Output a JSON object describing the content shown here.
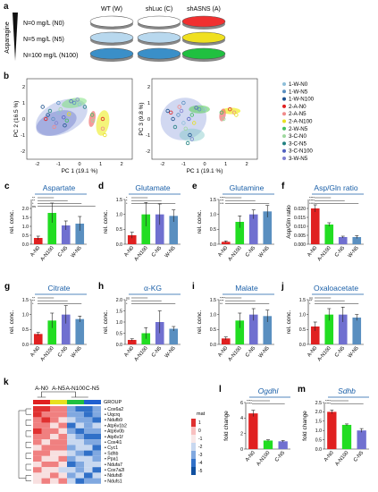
{
  "panels": {
    "a": {
      "label": "a",
      "axis_label": "Asparagine",
      "levels": [
        "N=0 mg/L (N0)",
        "N=5 mg/L (N5)",
        "N=100 mg/L (N100)"
      ],
      "groups": [
        "WT (W)",
        "shLuc (C)",
        "shASNS (A)"
      ]
    },
    "b": {
      "label": "b",
      "left_xlabel": "PC 1 (19.1 %)",
      "left_ylabel": "PC 2 (16.5 %)",
      "right_xlabel": "PC 1 (19.1 %)",
      "right_ylabel": "PC 3 (9.8 %)",
      "ticks_x": [
        "-2",
        "-1",
        "0",
        "1",
        "2"
      ],
      "ticks_y": [
        "2",
        "1",
        "0",
        "-1",
        "-2"
      ],
      "legend": [
        {
          "name": "1-W-N0",
          "color": "#8fbfd9"
        },
        {
          "name": "1-W-N5",
          "color": "#5a8fc0"
        },
        {
          "name": "1-W-N100",
          "color": "#1c4f8c"
        },
        {
          "name": "2-A-N0",
          "color": "#e02020"
        },
        {
          "name": "2-A-N5",
          "color": "#f08a8a"
        },
        {
          "name": "2-A-N100",
          "color": "#e8e020"
        },
        {
          "name": "2-W-N5",
          "color": "#40c060"
        },
        {
          "name": "3-C-N0",
          "color": "#9fd89f"
        },
        {
          "name": "3-C-N5",
          "color": "#208080"
        },
        {
          "name": "3-C-N100",
          "color": "#5060c0"
        },
        {
          "name": "3-W-N5",
          "color": "#8080d0"
        }
      ]
    },
    "k": {
      "label": "k",
      "groups": [
        "A-N0",
        "A-N5",
        "A-N100",
        "C-N5"
      ],
      "group_colors": [
        "#e02020",
        "#e8e020",
        "#20c040",
        "#2060d0"
      ],
      "legend_title": "GROUP",
      "genes": [
        "Cox6a2",
        "Uqcrq",
        "Ndufb9",
        "Atp6v1b2",
        "Atp6v0b",
        "Atp6v1f",
        "Cox4i1",
        "Cyc1",
        "Sdhb",
        "Ppa1",
        "Ndufa7",
        "Cox7a2l",
        "Ndufs8",
        "Ndufs1"
      ],
      "scale_label": "mat",
      "scale_ticks": [
        "1",
        "0",
        "-1",
        "-2",
        "-3",
        "-4",
        "-5"
      ]
    }
  },
  "chart_data": [
    {
      "panel": "c",
      "type": "bar",
      "title": "Aspartate",
      "ylabel": "rel. conc.",
      "categories": [
        "A-N0",
        "A-N100",
        "C-N5",
        "W-N5"
      ],
      "values": [
        0.35,
        1.75,
        1.05,
        1.15
      ],
      "errors": [
        0.1,
        0.55,
        0.25,
        0.4
      ],
      "colors": [
        "#e02020",
        "#22dd22",
        "#7070d0",
        "#5a8fc0"
      ],
      "ylim": [
        0,
        2.5
      ],
      "yticks": [
        "0.0",
        "0.5",
        "1.0",
        "1.5",
        "2.0"
      ],
      "sig": [
        "**",
        "**",
        "*",
        "ns"
      ]
    },
    {
      "panel": "d",
      "type": "bar",
      "title": "Glutamate",
      "ylabel": "rel. conc.",
      "categories": [
        "A-N0",
        "A-N100",
        "C-N5",
        "W-N5"
      ],
      "values": [
        0.3,
        1.0,
        1.0,
        0.95
      ],
      "errors": [
        0.1,
        0.4,
        0.35,
        0.2
      ],
      "colors": [
        "#e02020",
        "#22dd22",
        "#7070d0",
        "#5a8fc0"
      ],
      "ylim": [
        0,
        1.5
      ],
      "yticks": [
        "0.0",
        "0.5",
        "1.0",
        "1.5"
      ],
      "sig": [
        "*",
        "*",
        "*"
      ]
    },
    {
      "panel": "e",
      "type": "bar",
      "title": "Glutamine",
      "ylabel": "rel. conc.",
      "categories": [
        "A-N0",
        "A-N100",
        "C-N5",
        "W-N5"
      ],
      "values": [
        0.08,
        0.75,
        1.0,
        1.1
      ],
      "errors": [
        0.03,
        0.2,
        0.15,
        0.2
      ],
      "colors": [
        "#e02020",
        "#22dd22",
        "#7070d0",
        "#5a8fc0"
      ],
      "ylim": [
        0,
        1.5
      ],
      "yticks": [
        "0.0",
        "0.5",
        "1.0",
        "1.5"
      ],
      "sig": [
        "****",
        "***",
        "***"
      ]
    },
    {
      "panel": "f",
      "type": "bar",
      "title": "Asp/Gln ratio",
      "ylabel": "Asp/Gln ratio",
      "categories": [
        "A-N0",
        "A-N100",
        "C-N5",
        "W-N5"
      ],
      "values": [
        0.02,
        0.011,
        0.004,
        0.004
      ],
      "errors": [
        0.002,
        0.001,
        0.0005,
        0.0008
      ],
      "colors": [
        "#e02020",
        "#22dd22",
        "#7070d0",
        "#5a8fc0"
      ],
      "ylim": [
        0,
        0.025
      ],
      "yticks": [
        "0.000",
        "0.005",
        "0.010",
        "0.015",
        "0.020"
      ],
      "sig": [
        "****",
        "****",
        "****"
      ]
    },
    {
      "panel": "g",
      "type": "bar",
      "title": "Citrate",
      "ylabel": "rel. conc.",
      "categories": [
        "A-N0",
        "A-N100",
        "C-N5",
        "W-N5"
      ],
      "values": [
        0.35,
        0.8,
        1.0,
        0.85
      ],
      "errors": [
        0.05,
        0.25,
        0.3,
        0.1
      ],
      "colors": [
        "#e02020",
        "#22dd22",
        "#7070d0",
        "#5a8fc0"
      ],
      "ylim": [
        0,
        1.5
      ],
      "yticks": [
        "0.0",
        "0.5",
        "1.0",
        "1.5"
      ],
      "sig": [
        "**",
        "**",
        "*"
      ]
    },
    {
      "panel": "h",
      "type": "bar",
      "title": "α-KG",
      "ylabel": "rel. conc.",
      "categories": [
        "A-N0",
        "A-N100",
        "C-N5",
        "W-N5"
      ],
      "values": [
        0.2,
        0.5,
        1.0,
        0.7
      ],
      "errors": [
        0.05,
        0.25,
        0.5,
        0.1
      ],
      "colors": [
        "#e02020",
        "#22dd22",
        "#7070d0",
        "#5a8fc0"
      ],
      "ylim": [
        0,
        2.0
      ],
      "yticks": [
        "0.0",
        "0.5",
        "1.0",
        "1.5",
        "2.0"
      ],
      "sig": [
        "ns",
        "*",
        "*"
      ]
    },
    {
      "panel": "i",
      "type": "bar",
      "title": "Malate",
      "ylabel": "rel. conc.",
      "categories": [
        "A-N0",
        "A-N100",
        "C-N5",
        "W-N5"
      ],
      "values": [
        0.2,
        0.8,
        1.0,
        0.95
      ],
      "errors": [
        0.05,
        0.25,
        0.2,
        0.2
      ],
      "colors": [
        "#e02020",
        "#22dd22",
        "#7070d0",
        "#5a8fc0"
      ],
      "ylim": [
        0,
        1.5
      ],
      "yticks": [
        "0.0",
        "0.5",
        "1.0",
        "1.5"
      ],
      "sig": [
        "****",
        "***",
        "**"
      ]
    },
    {
      "panel": "j",
      "type": "bar",
      "title": "Oxaloacetate",
      "ylabel": "rel. conc.",
      "categories": [
        "A-N0",
        "A-N100",
        "C-N5",
        "W-N5"
      ],
      "values": [
        0.6,
        1.0,
        1.0,
        0.9
      ],
      "errors": [
        0.15,
        0.2,
        0.25,
        0.1
      ],
      "colors": [
        "#e02020",
        "#22dd22",
        "#7070d0",
        "#5a8fc0"
      ],
      "ylim": [
        0,
        1.5
      ],
      "yticks": [
        "0.0",
        "0.5",
        "1.0",
        "1.5"
      ],
      "sig": [
        "ns",
        "**",
        "*"
      ]
    },
    {
      "panel": "l",
      "type": "bar",
      "title": "Ogdhl",
      "ylabel": "fold change",
      "categories": [
        "A-N0",
        "A-N100",
        "C-N5"
      ],
      "values": [
        4.6,
        1.1,
        1.0
      ],
      "errors": [
        0.4,
        0.1,
        0.1
      ],
      "colors": [
        "#e02020",
        "#22dd22",
        "#7070d0"
      ],
      "ylim": [
        0,
        6
      ],
      "yticks": [
        "0",
        "2",
        "4",
        "6"
      ],
      "sig": [
        "****",
        "****"
      ]
    },
    {
      "panel": "m",
      "type": "bar",
      "title": "Sdhb",
      "ylabel": "fold change",
      "categories": [
        "A-N0",
        "A-N100",
        "C-N5"
      ],
      "values": [
        2.0,
        1.3,
        1.0
      ],
      "errors": [
        0.1,
        0.05,
        0.1
      ],
      "colors": [
        "#e02020",
        "#22dd22",
        "#7070d0"
      ],
      "ylim": [
        0,
        2.5
      ],
      "yticks": [
        "0.0",
        "0.5",
        "1.0",
        "1.5",
        "2.0",
        "2.5"
      ],
      "sig": [
        "****",
        "****"
      ]
    }
  ]
}
